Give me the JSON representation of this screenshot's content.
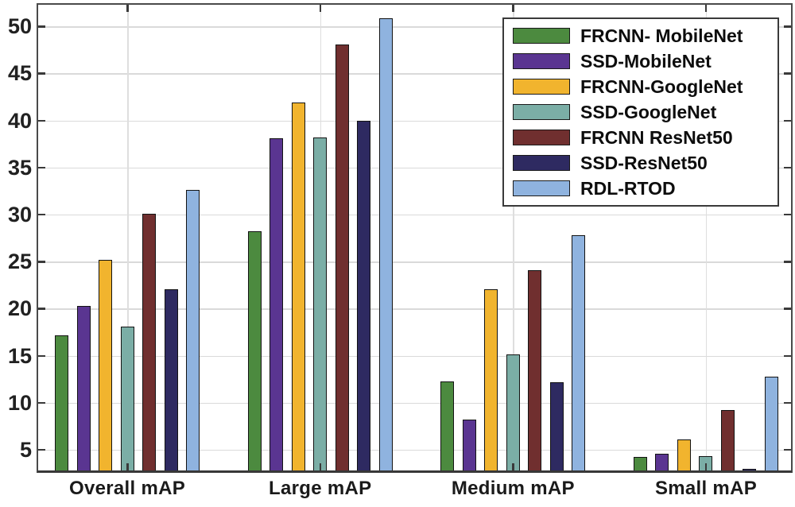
{
  "figure": {
    "background_color": "#ffffff",
    "axes_box_color": "#4a4a4a",
    "grid_color": "#dadada",
    "tick_color": "#3a3a3a",
    "y_tick_label_color": "#212121",
    "x_label_color": "#1a1a1a"
  },
  "chart_data": {
    "type": "bar",
    "title": "",
    "xlabel": "",
    "ylabel": "",
    "categories": [
      "Overall mAP",
      "Large mAP",
      "Medium mAP",
      "Small mAP"
    ],
    "series": [
      {
        "name": "FRCNN- MobileNet",
        "color": "#4C8A3F",
        "values": [
          17.2,
          28.2,
          12.3,
          4.2
        ]
      },
      {
        "name": "SSD-MobileNet",
        "color": "#5A3591",
        "values": [
          20.3,
          38.1,
          8.2,
          4.6
        ]
      },
      {
        "name": "FRCNN-GoogleNet",
        "color": "#F1B42E",
        "values": [
          25.2,
          41.9,
          22.1,
          6.1
        ]
      },
      {
        "name": "SSD-GoogleNet",
        "color": "#7BAEA6",
        "values": [
          18.1,
          38.2,
          15.1,
          4.3
        ]
      },
      {
        "name": "FRCNN ResNet50",
        "color": "#702F2F",
        "values": [
          30.1,
          48.1,
          24.1,
          9.2
        ]
      },
      {
        "name": "SSD-ResNet50",
        "color": "#2E2A61",
        "values": [
          22.1,
          40.0,
          12.2,
          3.0
        ]
      },
      {
        "name": "RDL-RTOD",
        "color": "#8FB3DF",
        "values": [
          32.6,
          50.9,
          27.8,
          12.8
        ]
      }
    ],
    "bar_edge_color": "#131313",
    "yticks": [
      5,
      10,
      15,
      20,
      25,
      30,
      35,
      40,
      45,
      50
    ],
    "ylim": [
      2.8,
      52.3
    ],
    "grid": true,
    "legend_position": "top-right",
    "group_center_fractions": [
      0.1183,
      0.3746,
      0.6308,
      0.887
    ]
  }
}
